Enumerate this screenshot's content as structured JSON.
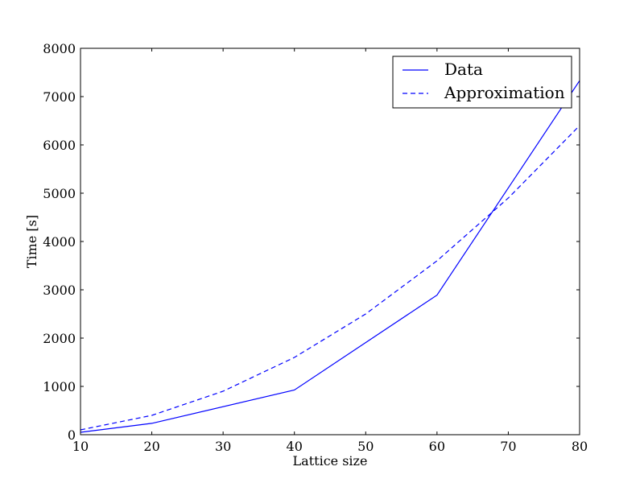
{
  "chart_data": {
    "type": "line",
    "title": "",
    "xlabel": "Lattice size",
    "ylabel": "Time [s]",
    "xlim": [
      10,
      80
    ],
    "ylim": [
      0,
      8000
    ],
    "xticks": [
      10,
      20,
      30,
      40,
      50,
      60,
      70,
      80
    ],
    "yticks": [
      0,
      1000,
      2000,
      3000,
      4000,
      5000,
      6000,
      7000,
      8000
    ],
    "grid": false,
    "legend_position": "top-right",
    "series": [
      {
        "name": "Data",
        "style": "solid",
        "color": "#0000ff",
        "x": [
          10,
          20,
          40,
          60,
          80
        ],
        "y": [
          50,
          235,
          925,
          2890,
          7330
        ]
      },
      {
        "name": "Approximation",
        "style": "dashed",
        "color": "#0000ff",
        "x": [
          10,
          20,
          30,
          40,
          50,
          60,
          70,
          80
        ],
        "y": [
          100,
          400,
          900,
          1600,
          2500,
          3600,
          4900,
          6400
        ]
      }
    ]
  }
}
